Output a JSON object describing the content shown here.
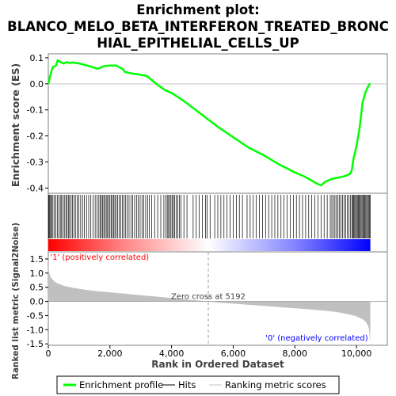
{
  "chart_data": {
    "type": "line",
    "title_lines": [
      "Enrichment plot:",
      "BLANCO_MELO_BETA_INTERFERON_TREATED_BRONC",
      "HIAL_EPITHELIAL_CELLS_UP"
    ],
    "es_panel": {
      "ylabel": "Enrichment score (ES)",
      "ylim": [
        -0.42,
        0.115
      ],
      "yticks": [
        0.1,
        0.0,
        -0.1,
        -0.2,
        -0.3,
        -0.4
      ],
      "ytick_labels": [
        "0.1",
        "0.0",
        "-0.1",
        "-0.2",
        "-0.3",
        "-0.4"
      ],
      "series": [
        {
          "name": "Enrichment profile",
          "color": "#00ff00",
          "x": [
            0,
            80,
            150,
            250,
            300,
            400,
            500,
            600,
            700,
            800,
            1000,
            1200,
            1400,
            1600,
            1700,
            1800,
            2000,
            2200,
            2400,
            2500,
            2700,
            2900,
            3200,
            3500,
            3800,
            3900,
            4000,
            4200,
            4500,
            5000,
            5500,
            6000,
            6500,
            7000,
            7500,
            8000,
            8300,
            8600,
            8750,
            8850,
            9000,
            9200,
            9400,
            9600,
            9700,
            9800,
            9850,
            9900,
            10000,
            10100,
            10200,
            10300,
            10400,
            10450
          ],
          "y": [
            0.0,
            0.04,
            0.065,
            0.07,
            0.09,
            0.083,
            0.078,
            0.083,
            0.08,
            0.082,
            0.078,
            0.072,
            0.065,
            0.058,
            0.062,
            0.068,
            0.07,
            0.07,
            0.058,
            0.045,
            0.04,
            0.037,
            0.03,
            0.0,
            -0.025,
            -0.03,
            -0.035,
            -0.05,
            -0.075,
            -0.12,
            -0.165,
            -0.205,
            -0.245,
            -0.275,
            -0.31,
            -0.34,
            -0.355,
            -0.375,
            -0.385,
            -0.39,
            -0.375,
            -0.365,
            -0.36,
            -0.355,
            -0.35,
            -0.345,
            -0.33,
            -0.29,
            -0.24,
            -0.17,
            -0.07,
            -0.03,
            -0.005,
            0.002
          ]
        }
      ]
    },
    "hits_panel": {
      "hit_positions": [
        5,
        25,
        50,
        80,
        110,
        150,
        200,
        240,
        300,
        340,
        390,
        430,
        480,
        520,
        570,
        610,
        650,
        690,
        740,
        780,
        830,
        880,
        940,
        990,
        1050,
        1110,
        1170,
        1240,
        1310,
        1380,
        1450,
        1520,
        1580,
        1640,
        1680,
        1720,
        1760,
        1800,
        1840,
        1880,
        1920,
        1960,
        2000,
        2040,
        2080,
        2120,
        2160,
        2200,
        2250,
        2300,
        2350,
        2400,
        2450,
        2500,
        2560,
        2620,
        2680,
        2740,
        2800,
        2860,
        2920,
        2980,
        3040,
        3100,
        3160,
        3220,
        3280,
        3350,
        3450,
        3550,
        3650,
        3750,
        3820,
        3860,
        3900,
        3940,
        3980,
        4020,
        4060,
        4100,
        4150,
        4200,
        4250,
        4300,
        4400,
        4500,
        4700,
        4800,
        4900,
        5000,
        5100,
        5150,
        5250,
        5400,
        5500,
        5600,
        5700,
        5800,
        5900,
        6000,
        6100,
        6200,
        6300,
        6450,
        6550,
        6650,
        6750,
        6850,
        6950,
        7050,
        7150,
        7250,
        7350,
        7450,
        7550,
        7650,
        7750,
        7850,
        7950,
        8050,
        8150,
        8250,
        8350,
        8450,
        8550,
        8650,
        8750,
        8850,
        8950,
        9050,
        9150,
        9200,
        9250,
        9300,
        9350,
        9400,
        9450,
        9500,
        9550,
        9600,
        9650,
        9700,
        9750,
        9800,
        9850,
        9880,
        9910,
        9940,
        9970,
        10000,
        10030,
        10060,
        10090,
        10120,
        10150,
        10180,
        10210,
        10240,
        10270,
        10300,
        10330,
        10360,
        10390,
        10420,
        10450
      ]
    },
    "metric_panel": {
      "ylabel": "Ranked list metric (Signal2Noise)",
      "ylim": [
        -1.55,
        1.75
      ],
      "yticks": [
        1.5,
        1.0,
        0.5,
        0.0,
        -0.5,
        -1.0,
        -1.5
      ],
      "ytick_labels": [
        "1.5",
        "1.0",
        "0.5",
        "0.0",
        "-0.5",
        "-1.0",
        "-1.5"
      ],
      "fill_color": "#c0c0c0",
      "x": [
        0,
        10,
        30,
        60,
        100,
        200,
        300,
        500,
        800,
        1200,
        1600,
        2000,
        2500,
        3000,
        3500,
        4000,
        4500,
        5000,
        5192,
        5500,
        6000,
        6500,
        7000,
        7500,
        8000,
        8500,
        9000,
        9300,
        9600,
        9800,
        10000,
        10100,
        10200,
        10300,
        10350,
        10400,
        10430,
        10450
      ],
      "y": [
        1.65,
        1.2,
        1.0,
        0.9,
        0.82,
        0.7,
        0.64,
        0.55,
        0.48,
        0.41,
        0.36,
        0.32,
        0.27,
        0.22,
        0.17,
        0.12,
        0.07,
        0.02,
        0.0,
        -0.04,
        -0.08,
        -0.12,
        -0.16,
        -0.2,
        -0.24,
        -0.28,
        -0.33,
        -0.37,
        -0.42,
        -0.47,
        -0.53,
        -0.58,
        -0.63,
        -0.72,
        -0.8,
        -0.95,
        -1.2,
        -1.45
      ]
    },
    "x_axis": {
      "xlabel": "Rank in Ordered Dataset",
      "xlim": [
        0,
        11000
      ],
      "xticks": [
        0,
        2000,
        4000,
        6000,
        8000,
        10000
      ],
      "xtick_labels": [
        "0",
        "2,000",
        "4,000",
        "6,000",
        "8,000",
        "10,000"
      ]
    },
    "list_size": 10450,
    "zero_cross": 5192,
    "annotations": {
      "zero_cross_label": "Zero cross at 5192",
      "positive_label": "'1' (positively correlated)",
      "negative_label": "'0' (negatively correlated)",
      "positive_color": "#ff0000",
      "negative_color": "#0000ff"
    },
    "legend": {
      "placement": "bottom",
      "items": [
        {
          "label": "Enrichment profile",
          "color": "#00ff00"
        },
        {
          "label": "Hits",
          "color": "#000000"
        },
        {
          "label": "Ranking metric scores",
          "color": "#c0c0c0"
        }
      ]
    }
  }
}
